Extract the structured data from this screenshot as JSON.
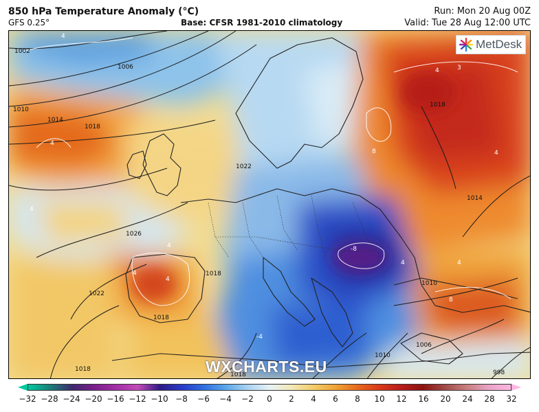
{
  "header": {
    "title": "850 hPa Temperature Anomaly (°C)",
    "model": "GFS 0.25°",
    "base": "Base: CFSR 1981-2010 climatology",
    "run": "Run: Mon 20 Aug 00Z",
    "valid": "Valid: Tue 28 Aug 12:00 UTC"
  },
  "logo": {
    "text": "MetDesk",
    "icon": "metdesk-star-icon"
  },
  "watermark": "WXCHARTS.EU",
  "map": {
    "isobar_labels": [
      "1002",
      "1006",
      "1010",
      "1014",
      "1018",
      "1018",
      "1026",
      "1022",
      "1018",
      "1018",
      "1018",
      "1014",
      "1010",
      "1006",
      "1010",
      "998",
      "1018",
      "1022"
    ],
    "anomaly_labels": [
      "4",
      "4",
      "4",
      "4",
      "4",
      "8",
      "-8",
      "-4",
      "4",
      "4",
      "8",
      "4",
      "3",
      "4",
      "4"
    ]
  },
  "colorbar": {
    "ticks": [
      "−32",
      "−28",
      "−24",
      "−20",
      "−16",
      "−12",
      "−10",
      "−8",
      "−6",
      "−4",
      "−2",
      "0",
      "2",
      "4",
      "6",
      "8",
      "10",
      "12",
      "16",
      "20",
      "24",
      "28",
      "32"
    ],
    "colors": [
      "#00c9a0",
      "#1a7f78",
      "#3d2a6e",
      "#7a1e8c",
      "#a32fa5",
      "#c24bb8",
      "#2f1a86",
      "#2a3bc7",
      "#2f6fe0",
      "#5aa6ea",
      "#a9d3f0",
      "#e8f2f6",
      "#f2e8b8",
      "#f4cc6a",
      "#f0a336",
      "#e86a1e",
      "#d93a1a",
      "#b81c1c",
      "#8c1410",
      "#a24a4a",
      "#c98080",
      "#e9a3c6",
      "#ffb7e1"
    ]
  }
}
